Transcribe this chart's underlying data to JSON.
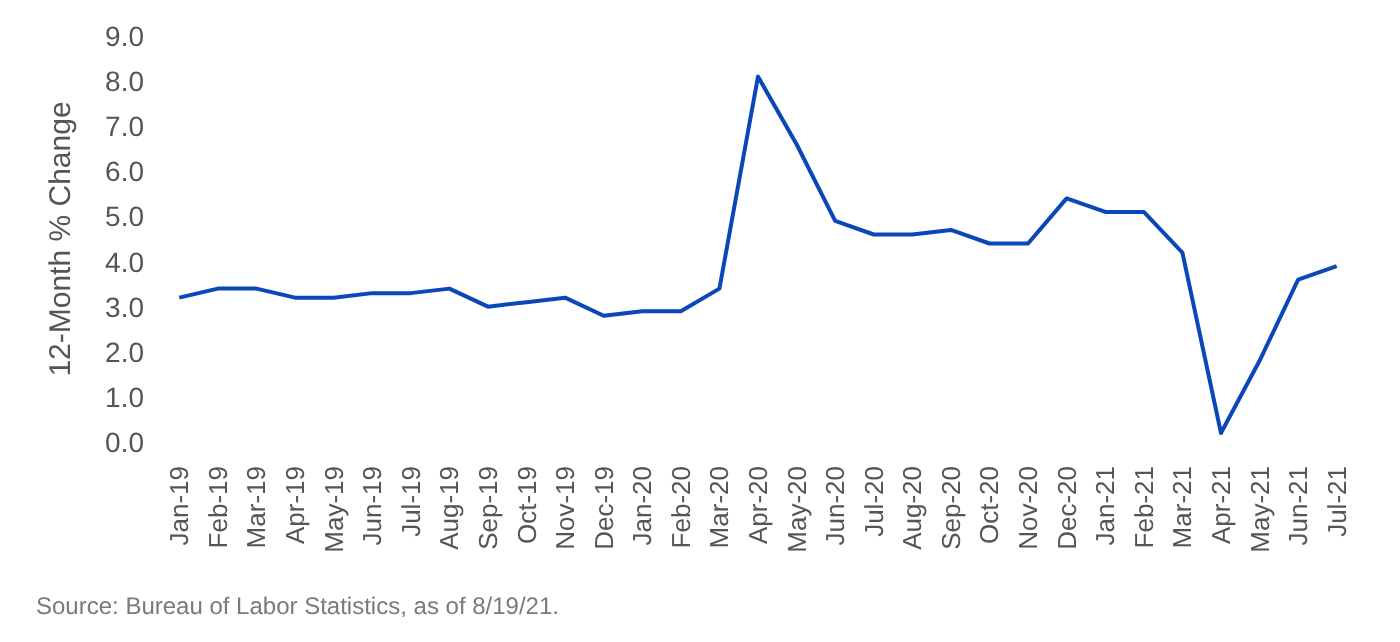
{
  "chart_data": {
    "type": "line",
    "ylabel": "12-Month % Change",
    "categories": [
      "Jan-19",
      "Feb-19",
      "Mar-19",
      "Apr-19",
      "May-19",
      "Jun-19",
      "Jul-19",
      "Aug-19",
      "Sep-19",
      "Oct-19",
      "Nov-19",
      "Dec-19",
      "Jan-20",
      "Feb-20",
      "Mar-20",
      "Apr-20",
      "May-20",
      "Jun-20",
      "Jul-20",
      "Aug-20",
      "Sep-20",
      "Oct-20",
      "Nov-20",
      "Dec-20",
      "Jan-21",
      "Feb-21",
      "Mar-21",
      "Apr-21",
      "May-21",
      "Jun-21",
      "Jul-21"
    ],
    "series": [
      {
        "color": "#0a47b8",
        "values": [
          3.2,
          3.4,
          3.4,
          3.2,
          3.2,
          3.3,
          3.3,
          3.4,
          3.0,
          3.1,
          3.2,
          2.8,
          2.9,
          2.9,
          3.4,
          8.1,
          6.6,
          4.9,
          4.6,
          4.6,
          4.7,
          4.4,
          4.4,
          5.4,
          5.1,
          5.1,
          4.2,
          0.2,
          1.8,
          3.6,
          3.9
        ]
      }
    ],
    "ylim": [
      0,
      9
    ],
    "yticks": [
      {
        "value": 0,
        "label": "0.0"
      },
      {
        "value": 1,
        "label": "1.0"
      },
      {
        "value": 2,
        "label": "2.0"
      },
      {
        "value": 3,
        "label": "3.0"
      },
      {
        "value": 4,
        "label": "4.0"
      },
      {
        "value": 5,
        "label": "5.0"
      },
      {
        "value": 6,
        "label": "6.0"
      },
      {
        "value": 7,
        "label": "7.0"
      },
      {
        "value": 8,
        "label": "8.0"
      },
      {
        "value": 9,
        "label": "9.0"
      }
    ],
    "grid": false,
    "marker": "none",
    "line_style": "solid",
    "annotations": [
      "Source: Bureau of Labor Statistics, as of 8/19/21."
    ]
  }
}
